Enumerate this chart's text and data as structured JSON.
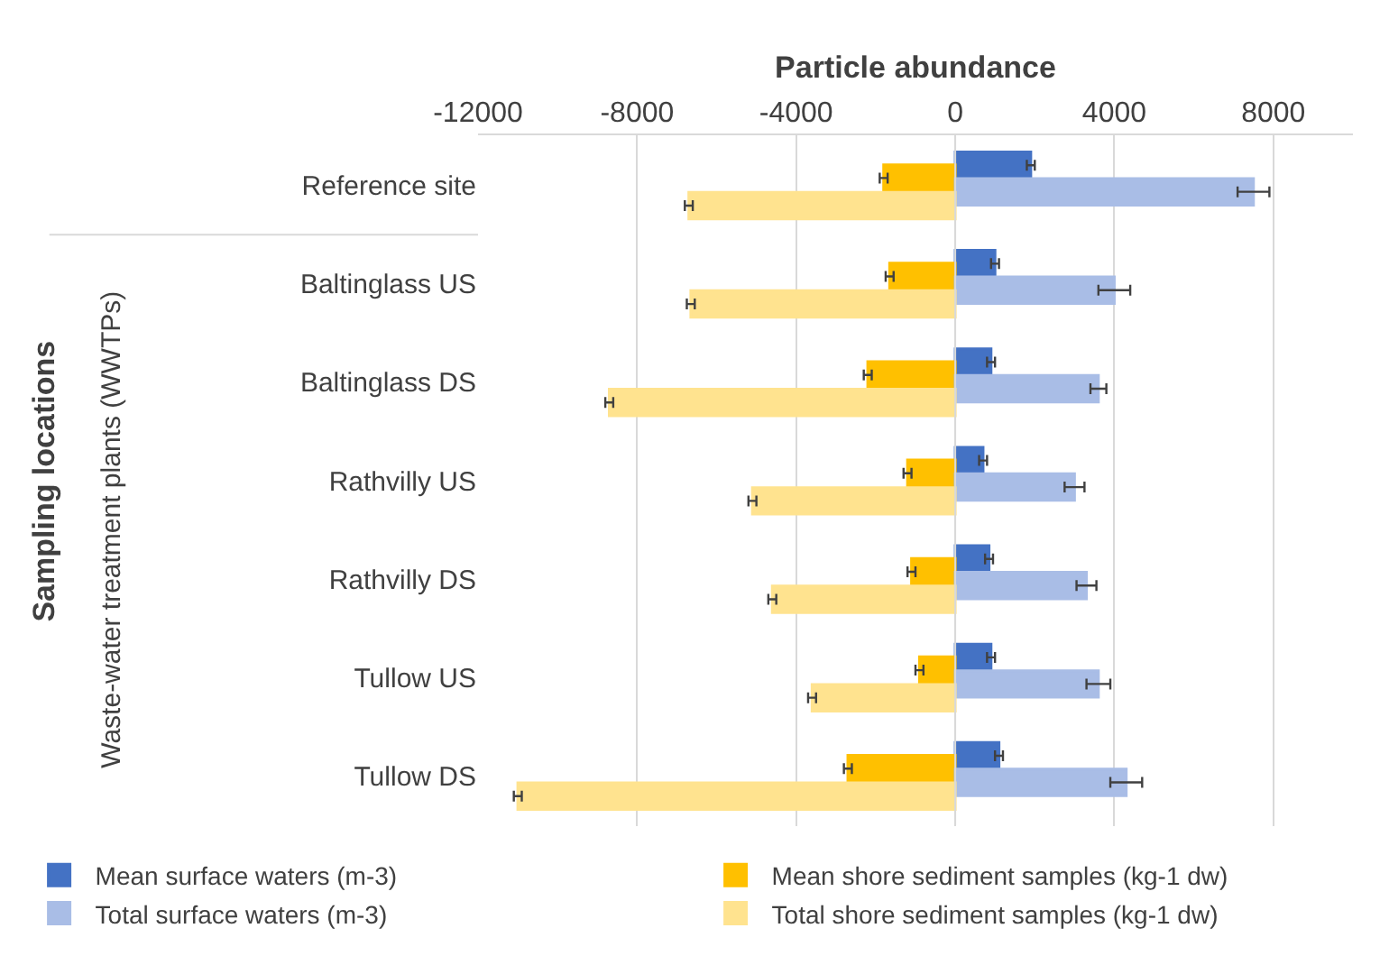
{
  "chart_data": {
    "type": "bar",
    "orientation": "horizontal",
    "xlabel": "Particle abundance",
    "categories": [
      "Reference site",
      "Baltinglass US",
      "Baltinglass DS",
      "Rathvilly US",
      "Rathvilly DS",
      "Tullow US",
      "Tullow DS"
    ],
    "series": [
      {
        "name": "Mean surface waters (m-3)",
        "color": "#4472c4",
        "values": [
          1900,
          1000,
          900,
          700,
          850,
          900,
          1100
        ],
        "errors": [
          100,
          100,
          100,
          100,
          100,
          100,
          100
        ]
      },
      {
        "name": "Mean shore sediment samples (kg-1 dw)",
        "color": "#ffc000",
        "values": [
          -1800,
          -1650,
          -2200,
          -1200,
          -1100,
          -900,
          -2700
        ],
        "errors": [
          100,
          100,
          100,
          100,
          100,
          100,
          100
        ]
      },
      {
        "name": "Total surface waters (m-3)",
        "color": "#a9bde6",
        "values": [
          7500,
          4000,
          3600,
          3000,
          3300,
          3600,
          4300
        ],
        "errors": [
          400,
          400,
          200,
          250,
          250,
          300,
          400
        ]
      },
      {
        "name": "Total shore sediment samples (kg-1 dw)",
        "color": "#ffe38f",
        "values": [
          -6700,
          -6650,
          -8700,
          -5100,
          -4600,
          -3600,
          -11000
        ],
        "errors": [
          100,
          100,
          100,
          100,
          100,
          100,
          100
        ]
      }
    ],
    "xlim": [
      -12000,
      10000
    ],
    "xticks": [
      -12000,
      -8000,
      -4000,
      0,
      4000,
      8000
    ],
    "annotations": [
      "Waste-water treatment plants (WWTPs)",
      "Sampling locations"
    ],
    "grid": "x",
    "legend": "bottom"
  }
}
